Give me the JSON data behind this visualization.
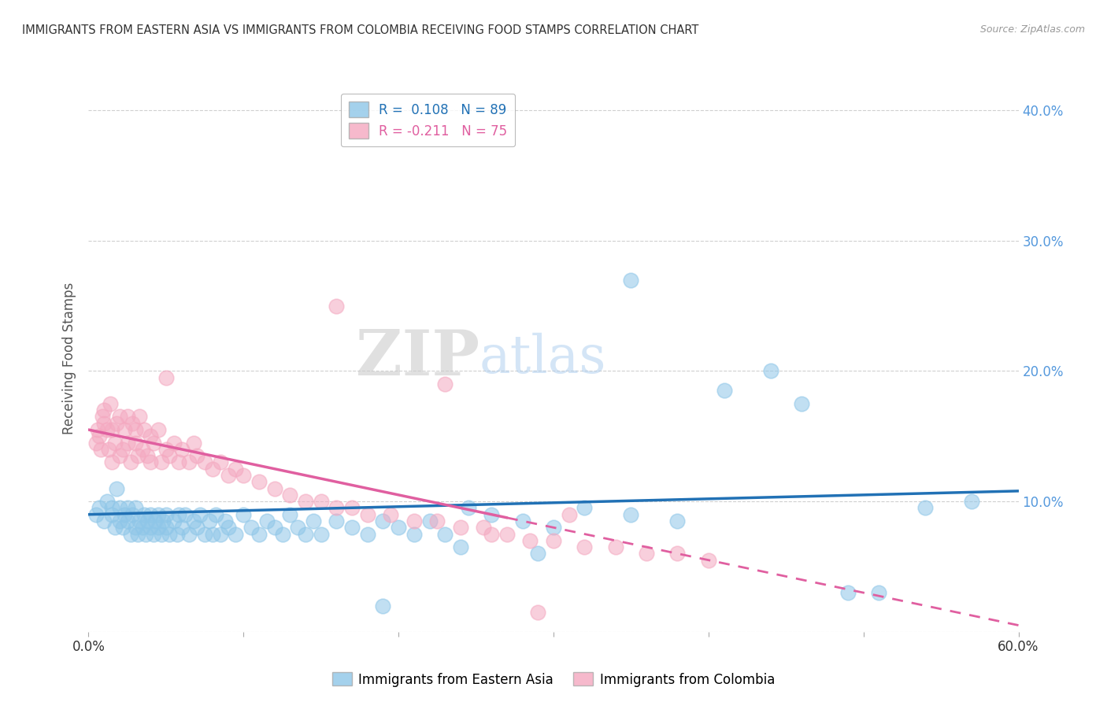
{
  "title": "IMMIGRANTS FROM EASTERN ASIA VS IMMIGRANTS FROM COLOMBIA RECEIVING FOOD STAMPS CORRELATION CHART",
  "source": "Source: ZipAtlas.com",
  "ylabel": "Receiving Food Stamps",
  "xlim": [
    0.0,
    0.6
  ],
  "ylim": [
    0.0,
    0.42
  ],
  "R_eastern_asia": 0.108,
  "N_eastern_asia": 89,
  "R_colombia": -0.211,
  "N_colombia": 75,
  "color_eastern_asia": "#8ec6e8",
  "color_colombia": "#f4a8c0",
  "line_color_eastern_asia": "#2171b5",
  "line_color_colombia": "#e05fa0",
  "background_color": "#ffffff",
  "grid_color": "#d0d0d0",
  "eastern_asia_x": [
    0.005,
    0.007,
    0.01,
    0.012,
    0.015,
    0.015,
    0.017,
    0.018,
    0.02,
    0.02,
    0.022,
    0.023,
    0.025,
    0.025,
    0.027,
    0.028,
    0.03,
    0.03,
    0.032,
    0.033,
    0.035,
    0.036,
    0.037,
    0.038,
    0.04,
    0.04,
    0.042,
    0.043,
    0.045,
    0.045,
    0.047,
    0.048,
    0.05,
    0.05,
    0.052,
    0.055,
    0.057,
    0.058,
    0.06,
    0.062,
    0.065,
    0.068,
    0.07,
    0.072,
    0.075,
    0.078,
    0.08,
    0.082,
    0.085,
    0.088,
    0.09,
    0.095,
    0.1,
    0.105,
    0.11,
    0.115,
    0.12,
    0.125,
    0.13,
    0.135,
    0.14,
    0.145,
    0.15,
    0.16,
    0.17,
    0.18,
    0.19,
    0.2,
    0.21,
    0.22,
    0.23,
    0.245,
    0.26,
    0.28,
    0.3,
    0.32,
    0.35,
    0.38,
    0.41,
    0.44,
    0.46,
    0.49,
    0.51,
    0.54,
    0.57,
    0.35,
    0.29,
    0.24,
    0.19
  ],
  "eastern_asia_y": [
    0.09,
    0.095,
    0.085,
    0.1,
    0.09,
    0.095,
    0.08,
    0.11,
    0.085,
    0.095,
    0.08,
    0.09,
    0.085,
    0.095,
    0.075,
    0.09,
    0.08,
    0.095,
    0.075,
    0.085,
    0.08,
    0.09,
    0.075,
    0.085,
    0.08,
    0.09,
    0.075,
    0.085,
    0.08,
    0.09,
    0.075,
    0.085,
    0.08,
    0.09,
    0.075,
    0.085,
    0.075,
    0.09,
    0.08,
    0.09,
    0.075,
    0.085,
    0.08,
    0.09,
    0.075,
    0.085,
    0.075,
    0.09,
    0.075,
    0.085,
    0.08,
    0.075,
    0.09,
    0.08,
    0.075,
    0.085,
    0.08,
    0.075,
    0.09,
    0.08,
    0.075,
    0.085,
    0.075,
    0.085,
    0.08,
    0.075,
    0.085,
    0.08,
    0.075,
    0.085,
    0.075,
    0.095,
    0.09,
    0.085,
    0.08,
    0.095,
    0.09,
    0.085,
    0.185,
    0.2,
    0.175,
    0.03,
    0.03,
    0.095,
    0.1,
    0.27,
    0.06,
    0.065,
    0.02
  ],
  "colombia_x": [
    0.005,
    0.006,
    0.007,
    0.008,
    0.009,
    0.01,
    0.01,
    0.012,
    0.013,
    0.014,
    0.015,
    0.015,
    0.017,
    0.018,
    0.02,
    0.02,
    0.022,
    0.023,
    0.025,
    0.025,
    0.027,
    0.028,
    0.03,
    0.03,
    0.032,
    0.033,
    0.035,
    0.036,
    0.038,
    0.04,
    0.04,
    0.042,
    0.045,
    0.047,
    0.05,
    0.052,
    0.055,
    0.058,
    0.06,
    0.065,
    0.068,
    0.07,
    0.075,
    0.08,
    0.085,
    0.09,
    0.095,
    0.1,
    0.11,
    0.12,
    0.13,
    0.14,
    0.15,
    0.16,
    0.17,
    0.18,
    0.195,
    0.21,
    0.225,
    0.24,
    0.255,
    0.27,
    0.285,
    0.3,
    0.32,
    0.34,
    0.36,
    0.38,
    0.4,
    0.31,
    0.26,
    0.23,
    0.16,
    0.29,
    0.05
  ],
  "colombia_y": [
    0.145,
    0.155,
    0.15,
    0.14,
    0.165,
    0.16,
    0.17,
    0.155,
    0.14,
    0.175,
    0.13,
    0.155,
    0.145,
    0.16,
    0.135,
    0.165,
    0.14,
    0.155,
    0.145,
    0.165,
    0.13,
    0.16,
    0.145,
    0.155,
    0.135,
    0.165,
    0.14,
    0.155,
    0.135,
    0.13,
    0.15,
    0.145,
    0.155,
    0.13,
    0.14,
    0.135,
    0.145,
    0.13,
    0.14,
    0.13,
    0.145,
    0.135,
    0.13,
    0.125,
    0.13,
    0.12,
    0.125,
    0.12,
    0.115,
    0.11,
    0.105,
    0.1,
    0.1,
    0.095,
    0.095,
    0.09,
    0.09,
    0.085,
    0.085,
    0.08,
    0.08,
    0.075,
    0.07,
    0.07,
    0.065,
    0.065,
    0.06,
    0.06,
    0.055,
    0.09,
    0.075,
    0.19,
    0.25,
    0.015,
    0.195
  ]
}
